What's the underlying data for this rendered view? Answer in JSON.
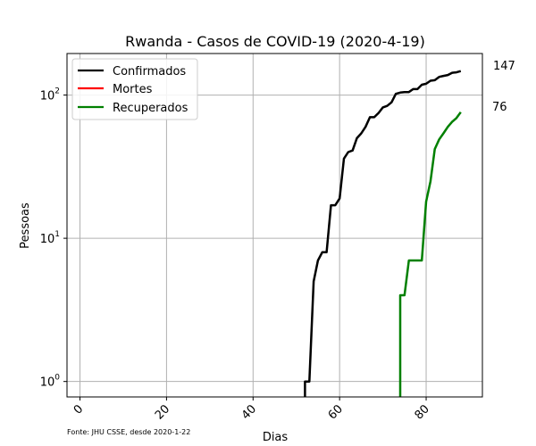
{
  "chart_data": {
    "type": "line",
    "title": "Rwanda - Casos de COVID-19 (2020-4-19)",
    "xlabel": "Dias",
    "ylabel": "Pessoas",
    "xlim": [
      -3,
      93
    ],
    "ylim": [
      0.78,
      195
    ],
    "yscale": "log",
    "grid": true,
    "legend_position": "top-left",
    "x_ticks": [
      0,
      20,
      40,
      60,
      80
    ],
    "y_ticks": [
      {
        "value": 1,
        "base": "10",
        "exp": "0"
      },
      {
        "value": 10,
        "base": "10",
        "exp": "1"
      },
      {
        "value": 100,
        "base": "10",
        "exp": "2"
      }
    ],
    "source": "Fonte: JHU CSSE, desde 2020-1-22",
    "series": [
      {
        "name": "Confirmados",
        "color": "#000000",
        "end_label": "147",
        "points": [
          [
            52,
            0.7
          ],
          [
            52,
            1
          ],
          [
            53,
            1
          ],
          [
            54,
            5
          ],
          [
            55,
            7
          ],
          [
            56,
            8
          ],
          [
            57,
            8
          ],
          [
            58,
            17
          ],
          [
            59,
            17
          ],
          [
            60,
            19
          ],
          [
            61,
            36
          ],
          [
            62,
            40
          ],
          [
            63,
            41
          ],
          [
            64,
            50
          ],
          [
            65,
            54
          ],
          [
            66,
            60
          ],
          [
            67,
            70
          ],
          [
            68,
            70
          ],
          [
            69,
            75
          ],
          [
            70,
            82
          ],
          [
            71,
            84
          ],
          [
            72,
            89
          ],
          [
            73,
            102
          ],
          [
            74,
            104
          ],
          [
            75,
            105
          ],
          [
            76,
            105
          ],
          [
            77,
            110
          ],
          [
            78,
            110
          ],
          [
            79,
            118
          ],
          [
            80,
            120
          ],
          [
            81,
            126
          ],
          [
            82,
            127
          ],
          [
            83,
            134
          ],
          [
            84,
            136
          ],
          [
            85,
            138
          ],
          [
            86,
            143
          ],
          [
            87,
            144
          ],
          [
            88,
            147
          ]
        ]
      },
      {
        "name": "Mortes",
        "color": "#ff0000",
        "end_label": "",
        "points": []
      },
      {
        "name": "Recuperados",
        "color": "#008000",
        "end_label": "76",
        "points": [
          [
            74,
            0.7
          ],
          [
            74,
            4
          ],
          [
            75,
            4
          ],
          [
            76,
            7
          ],
          [
            77,
            7
          ],
          [
            78,
            7
          ],
          [
            79,
            7
          ],
          [
            80,
            18
          ],
          [
            81,
            25
          ],
          [
            82,
            42
          ],
          [
            83,
            49
          ],
          [
            84,
            54
          ],
          [
            85,
            60
          ],
          [
            86,
            65
          ],
          [
            87,
            69
          ],
          [
            88,
            76
          ]
        ]
      }
    ]
  }
}
